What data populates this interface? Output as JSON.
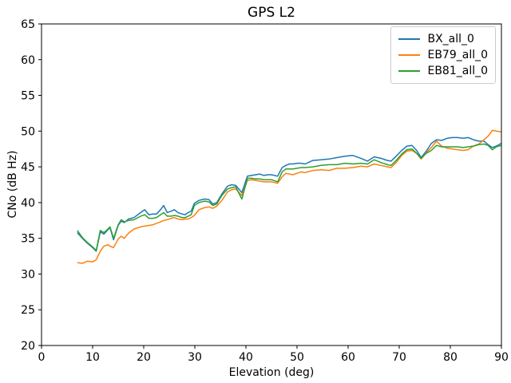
{
  "figure": {
    "title": "GPS L2",
    "xlabel": "Elevation (deg)",
    "ylabel": "CNo (dB Hz)"
  },
  "chart_data": {
    "type": "line",
    "title": "GPS L2",
    "xlabel": "Elevation (deg)",
    "ylabel": "CNo (dB Hz)",
    "xlim": [
      0,
      90
    ],
    "ylim": [
      20,
      65
    ],
    "xticks": [
      0,
      10,
      20,
      30,
      40,
      50,
      60,
      70,
      80,
      90
    ],
    "yticks": [
      20,
      25,
      30,
      35,
      40,
      45,
      50,
      55,
      60,
      65
    ],
    "grid": false,
    "legend_position": "upper right",
    "line_width": 1.5,
    "x": [
      7.0,
      8.0,
      9.0,
      10.0,
      10.7,
      11.5,
      12.2,
      13.0,
      13.4,
      14.1,
      15.0,
      15.6,
      16.2,
      17.0,
      18.1,
      19.4,
      20.2,
      21.0,
      21.8,
      22.5,
      23.3,
      23.9,
      24.6,
      25.4,
      26.0,
      26.7,
      27.5,
      28.1,
      28.7,
      29.3,
      29.9,
      30.8,
      31.9,
      32.8,
      33.5,
      34.3,
      35.3,
      36.4,
      37.2,
      38.0,
      39.2,
      40.3,
      41.1,
      41.9,
      42.7,
      43.5,
      44.3,
      45.0,
      46.2,
      47.1,
      47.8,
      48.5,
      49.2,
      50.0,
      50.8,
      51.6,
      53.1,
      54.7,
      56.3,
      57.8,
      59.4,
      60.9,
      62.5,
      63.8,
      65.1,
      66.4,
      67.7,
      68.4,
      69.4,
      70.5,
      71.5,
      72.5,
      73.4,
      74.3,
      75.3,
      76.3,
      77.3,
      78.3,
      79.4,
      80.4,
      81.4,
      82.5,
      83.5,
      84.5,
      85.6,
      86.6,
      87.4,
      88.2,
      89.0,
      90.0
    ],
    "series": [
      {
        "name": "BX_all_0",
        "color": "#1f77b4",
        "values": [
          35.8,
          35.0,
          34.3,
          33.7,
          33.2,
          35.9,
          35.6,
          36.2,
          36.5,
          34.8,
          36.8,
          37.4,
          37.2,
          37.7,
          37.9,
          38.6,
          39.0,
          38.3,
          38.4,
          38.4,
          39.0,
          39.6,
          38.6,
          38.8,
          39.0,
          38.6,
          38.4,
          38.3,
          38.6,
          38.8,
          39.9,
          40.3,
          40.5,
          40.4,
          39.8,
          40.0,
          41.2,
          42.3,
          42.5,
          42.4,
          41.4,
          43.7,
          43.8,
          43.9,
          44.0,
          43.8,
          43.9,
          43.9,
          43.7,
          44.9,
          45.2,
          45.4,
          45.4,
          45.5,
          45.5,
          45.4,
          45.9,
          46.0,
          46.1,
          46.3,
          46.5,
          46.6,
          46.2,
          45.8,
          46.4,
          46.2,
          45.9,
          45.8,
          46.5,
          47.3,
          47.9,
          48.0,
          47.3,
          46.3,
          47.2,
          48.3,
          48.8,
          48.7,
          49.0,
          49.1,
          49.1,
          49.0,
          49.1,
          48.8,
          48.6,
          48.6,
          48.1,
          47.7,
          47.9,
          48.3
        ]
      },
      {
        "name": "EB79_all_0",
        "color": "#ff7f0e",
        "values": [
          31.6,
          31.5,
          31.8,
          31.7,
          32.0,
          33.2,
          33.9,
          34.1,
          33.9,
          33.7,
          34.9,
          35.3,
          35.0,
          35.7,
          36.3,
          36.6,
          36.7,
          36.8,
          36.9,
          37.1,
          37.3,
          37.5,
          37.6,
          37.8,
          37.9,
          37.7,
          37.6,
          37.7,
          37.7,
          37.9,
          38.2,
          39.0,
          39.3,
          39.4,
          39.2,
          39.5,
          40.3,
          41.5,
          41.8,
          41.9,
          41.0,
          43.1,
          43.2,
          43.1,
          43.0,
          42.9,
          42.9,
          42.9,
          42.7,
          43.6,
          44.1,
          44.0,
          43.9,
          44.1,
          44.3,
          44.2,
          44.5,
          44.6,
          44.5,
          44.8,
          44.8,
          44.9,
          45.1,
          45.0,
          45.4,
          45.2,
          45.0,
          44.9,
          45.6,
          46.6,
          47.2,
          47.3,
          46.9,
          46.1,
          47.0,
          47.7,
          48.6,
          47.9,
          47.6,
          47.5,
          47.4,
          47.3,
          47.4,
          47.9,
          48.2,
          48.8,
          49.3,
          50.1,
          50.0,
          49.9
        ]
      },
      {
        "name": "EB81_all_0",
        "color": "#2ca02c",
        "values": [
          36.1,
          35.1,
          34.4,
          33.8,
          33.3,
          36.1,
          35.8,
          36.3,
          36.6,
          35.0,
          36.9,
          37.6,
          37.3,
          37.5,
          37.6,
          38.1,
          38.3,
          37.8,
          37.8,
          37.9,
          38.3,
          38.6,
          38.1,
          38.1,
          38.2,
          38.1,
          37.9,
          37.9,
          38.1,
          38.3,
          39.6,
          40.0,
          40.2,
          40.1,
          39.6,
          39.8,
          41.0,
          41.9,
          42.1,
          42.2,
          40.5,
          43.4,
          43.4,
          43.3,
          43.3,
          43.2,
          43.2,
          43.2,
          42.9,
          44.3,
          44.7,
          44.7,
          44.7,
          44.8,
          44.9,
          44.9,
          45.0,
          45.2,
          45.3,
          45.3,
          45.5,
          45.4,
          45.5,
          45.4,
          46.0,
          45.6,
          45.3,
          45.2,
          45.9,
          46.8,
          47.4,
          47.5,
          46.9,
          46.2,
          46.9,
          47.3,
          48.0,
          47.8,
          47.8,
          47.8,
          47.8,
          47.7,
          47.8,
          47.9,
          48.1,
          48.2,
          48.0,
          47.4,
          47.8,
          48.0
        ]
      }
    ]
  }
}
